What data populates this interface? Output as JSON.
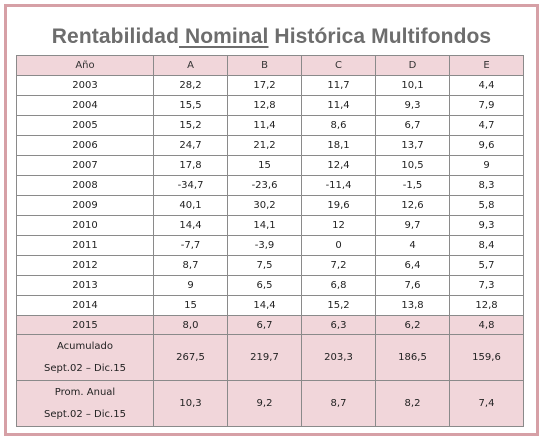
{
  "title": {
    "before": "Rentabilidad",
    "underlined": " Nominal",
    "after": " Histórica Multifondos"
  },
  "table": {
    "headers": [
      "Año",
      "A",
      "B",
      "C",
      "D",
      "E"
    ],
    "rows": [
      [
        "2003",
        "28,2",
        "17,2",
        "11,7",
        "10,1",
        "4,4"
      ],
      [
        "2004",
        "15,5",
        "12,8",
        "11,4",
        "9,3",
        "7,9"
      ],
      [
        "2005",
        "15,2",
        "11,4",
        "8,6",
        "6,7",
        "4,7"
      ],
      [
        "2006",
        "24,7",
        "21,2",
        "18,1",
        "13,7",
        "9,6"
      ],
      [
        "2007",
        "17,8",
        "15",
        "12,4",
        "10,5",
        "9"
      ],
      [
        "2008",
        "-34,7",
        "-23,6",
        "-11,4",
        "-1,5",
        "8,3"
      ],
      [
        "2009",
        "40,1",
        "30,2",
        "19,6",
        "12,6",
        "5,8"
      ],
      [
        "2010",
        "14,4",
        "14,1",
        "12",
        "9,7",
        "9,3"
      ],
      [
        "2011",
        "-7,7",
        "-3,9",
        "0",
        "4",
        "8,4"
      ],
      [
        "2012",
        "8,7",
        "7,5",
        "7,2",
        "6,4",
        "5,7"
      ],
      [
        "2013",
        "9",
        "6,5",
        "6,8",
        "7,6",
        "7,3"
      ],
      [
        "2014",
        "15",
        "14,4",
        "15,2",
        "13,8",
        "12,8"
      ]
    ],
    "row_2015": [
      "2015",
      "8,0",
      "6,7",
      "6,3",
      "6,2",
      "4,8"
    ],
    "acumulado": {
      "label_line1": "Acumulado",
      "label_line2": "Sept.02 – Dic.15",
      "values": [
        "267,5",
        "219,7",
        "203,3",
        "186,5",
        "159,6"
      ]
    },
    "prom_anual": {
      "label_line1": "Prom. Anual",
      "label_line2": "Sept.02 – Dic.15",
      "values": [
        "10,3",
        "9,2",
        "8,7",
        "8,2",
        "7,4"
      ]
    }
  },
  "colors": {
    "header_fill": "#f1d6da",
    "frame_border": "#d6a0a6",
    "title_text": "#6d6d6d"
  }
}
